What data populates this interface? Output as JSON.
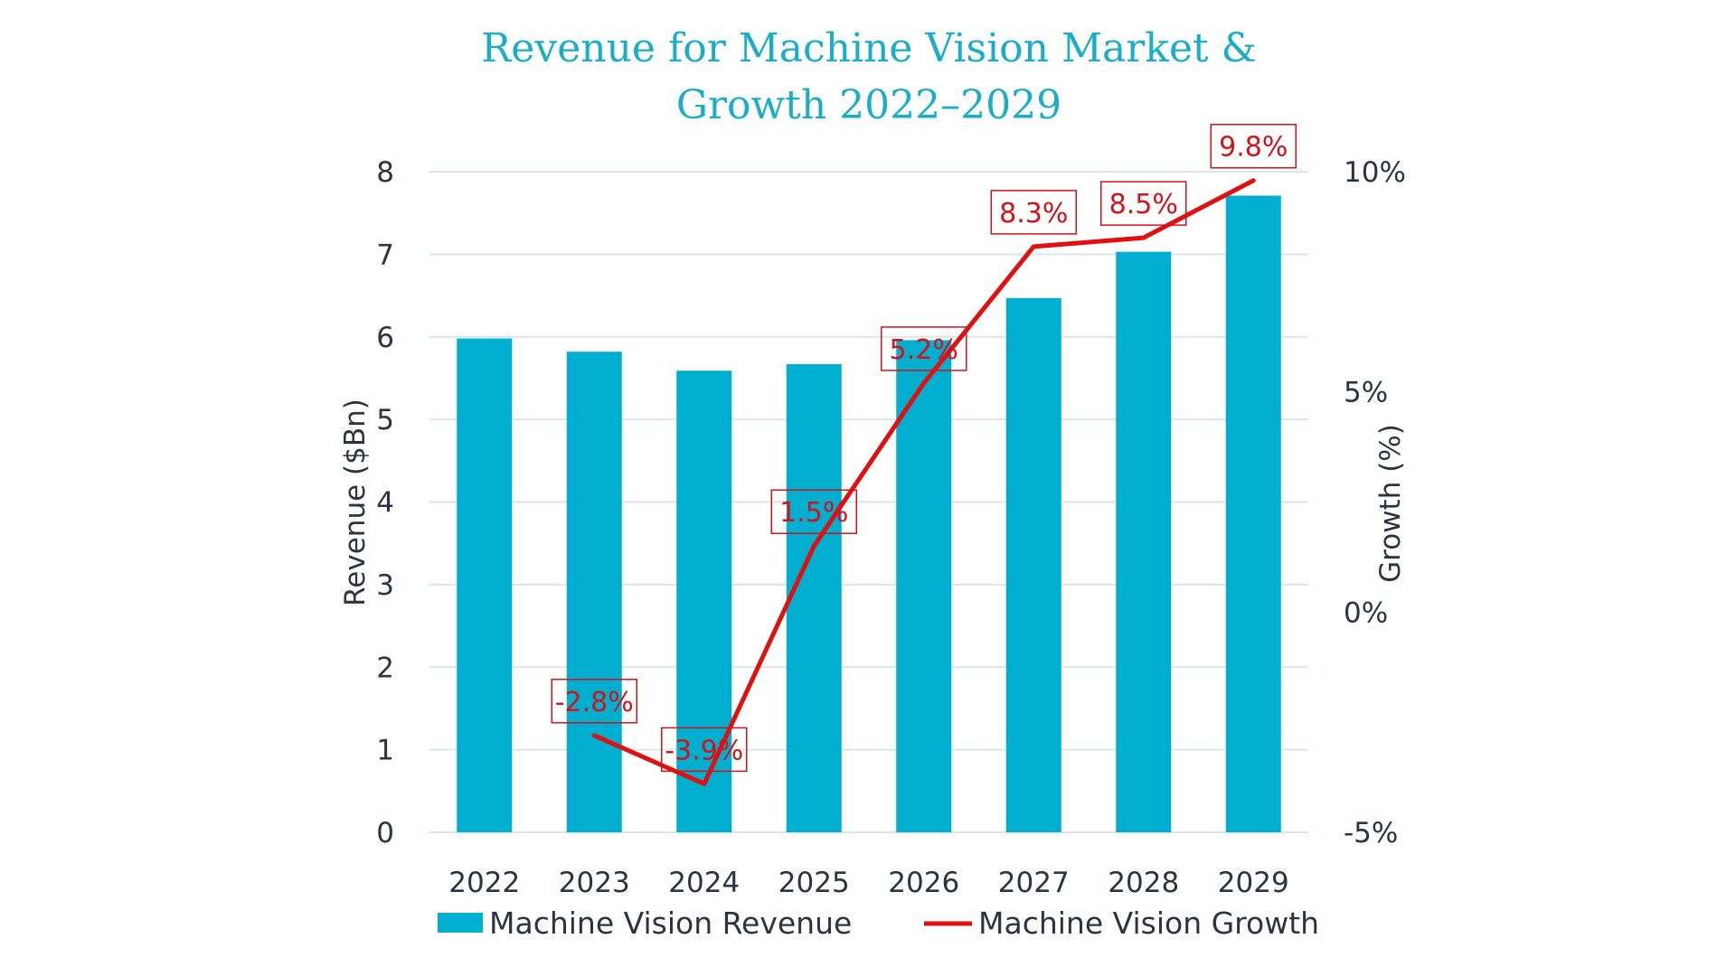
{
  "chart_data": {
    "type": "bar+line",
    "title_lines": [
      "Revenue for Machine Vision Market &",
      "Growth 2022–2029"
    ],
    "categories": [
      "2022",
      "2023",
      "2024",
      "2025",
      "2026",
      "2027",
      "2028",
      "2029"
    ],
    "ylabel": "Revenue ($Bn)",
    "y2label": "Growth (%)",
    "ylim": [
      0,
      8
    ],
    "y2lim": [
      -5,
      10
    ],
    "yticks": [
      "0",
      "1",
      "2",
      "3",
      "4",
      "5",
      "6",
      "7",
      "8"
    ],
    "y2ticks": [
      "-5%",
      "0%",
      "5%",
      "10%"
    ],
    "grid": true,
    "legend_position": "bottom",
    "series": [
      {
        "name": "Machine Vision Revenue",
        "type": "bar",
        "color": "#00aecf",
        "values": [
          5.98,
          5.82,
          5.59,
          5.67,
          5.96,
          6.47,
          7.03,
          7.71
        ]
      },
      {
        "name": "Machine Vision Growth",
        "type": "line",
        "axis": "right",
        "color": "#e01010",
        "values": [
          null,
          -2.8,
          -3.9,
          1.5,
          5.2,
          8.3,
          8.5,
          9.8
        ],
        "labels": [
          null,
          "-2.8%",
          "-3.9%",
          "1.5%",
          "5.2%",
          "8.3%",
          "8.5%",
          "9.8%"
        ]
      }
    ]
  }
}
